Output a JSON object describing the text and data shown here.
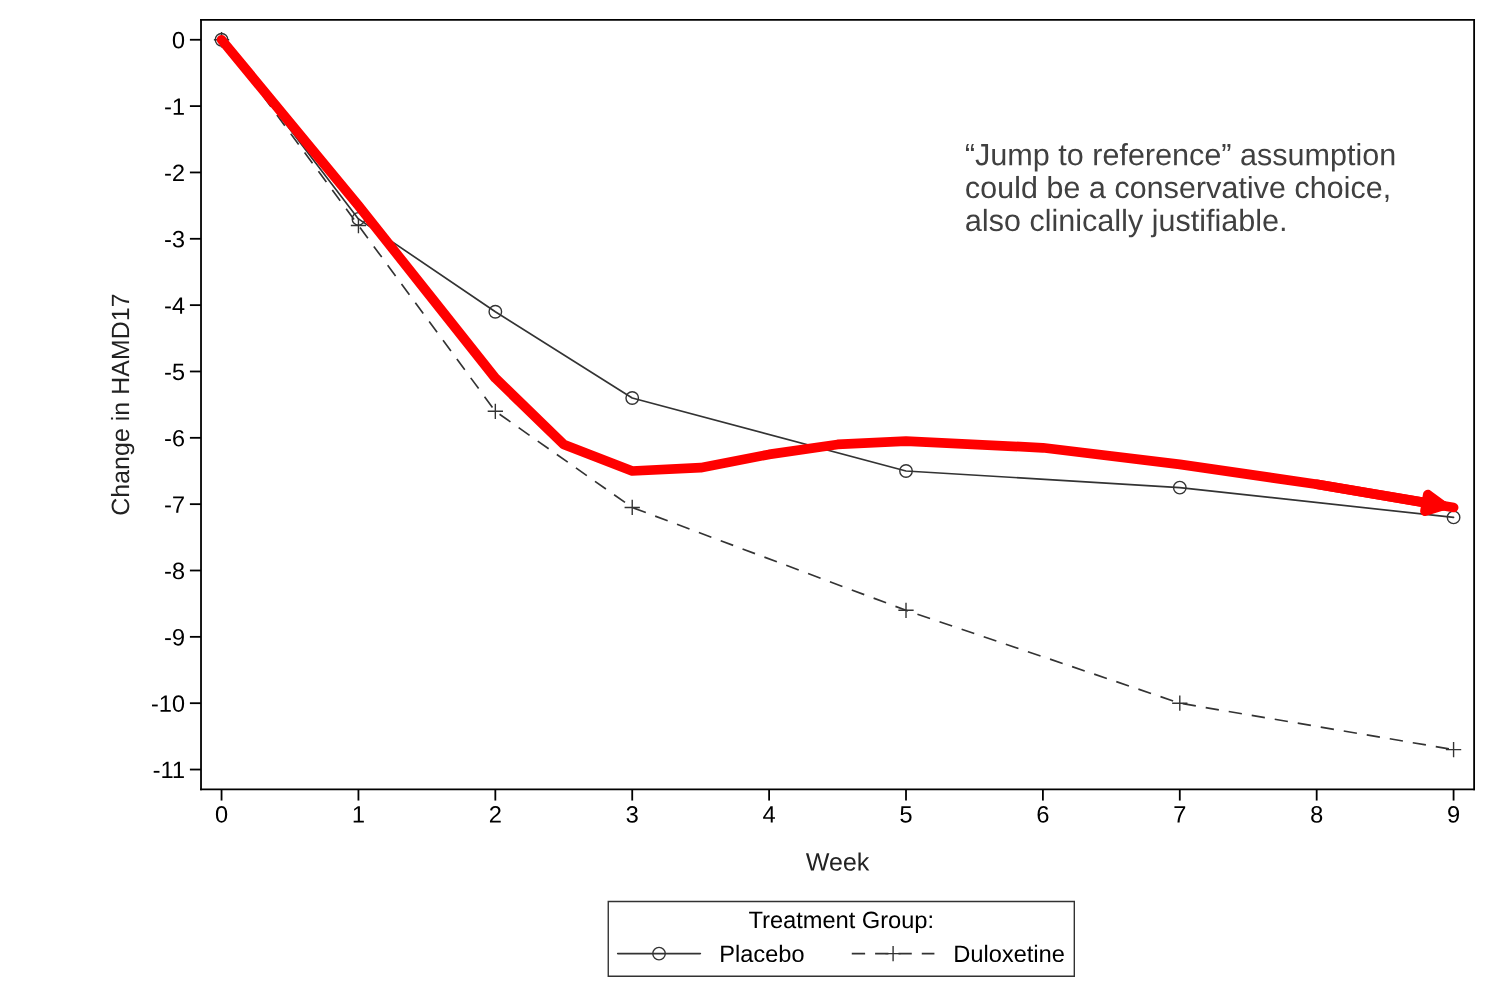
{
  "chart_data": {
    "type": "line",
    "xlabel": "Week",
    "ylabel": "Change in HAMD17",
    "legend_title": "Treatment Group:",
    "legend": "bottom",
    "x": [
      0,
      1,
      2,
      3,
      5,
      7,
      9
    ],
    "xlim": [
      -0.15,
      9.15
    ],
    "xticks": [
      0,
      1,
      2,
      3,
      4,
      5,
      6,
      7,
      8,
      9
    ],
    "ylim": [
      -11.3,
      0.3
    ],
    "yticks": [
      0,
      -1,
      -2,
      -3,
      -4,
      -5,
      -6,
      -7,
      -8,
      -9,
      -10,
      -11
    ],
    "series": [
      {
        "name": "Placebo",
        "color": "#333333",
        "marker": "circle",
        "line_style": "solid",
        "values": [
          0,
          -2.7,
          -4.1,
          -5.4,
          -6.5,
          -6.75,
          -7.2
        ]
      },
      {
        "name": "Duloxetine",
        "color": "#333333",
        "marker": "cross",
        "line_style": "dashed",
        "values": [
          0,
          -2.8,
          -5.6,
          -7.05,
          -8.6,
          -10.0,
          -10.7
        ]
      },
      {
        "color": "#ff0000",
        "marker": "none",
        "line_style": "solid",
        "x": [
          0,
          1,
          1.5,
          2,
          2.5,
          3,
          3.5,
          4,
          4.5,
          5,
          6,
          7,
          8,
          9
        ],
        "values": [
          0,
          -2.5,
          -3.8,
          -5.1,
          -6.1,
          -6.5,
          -6.45,
          -6.25,
          -6.1,
          -6.05,
          -6.15,
          -6.4,
          -6.7,
          -7.05
        ]
      }
    ],
    "annotations": [
      "“Jump to reference” assumption could be a conservative choice, also clinically justifiable."
    ]
  }
}
